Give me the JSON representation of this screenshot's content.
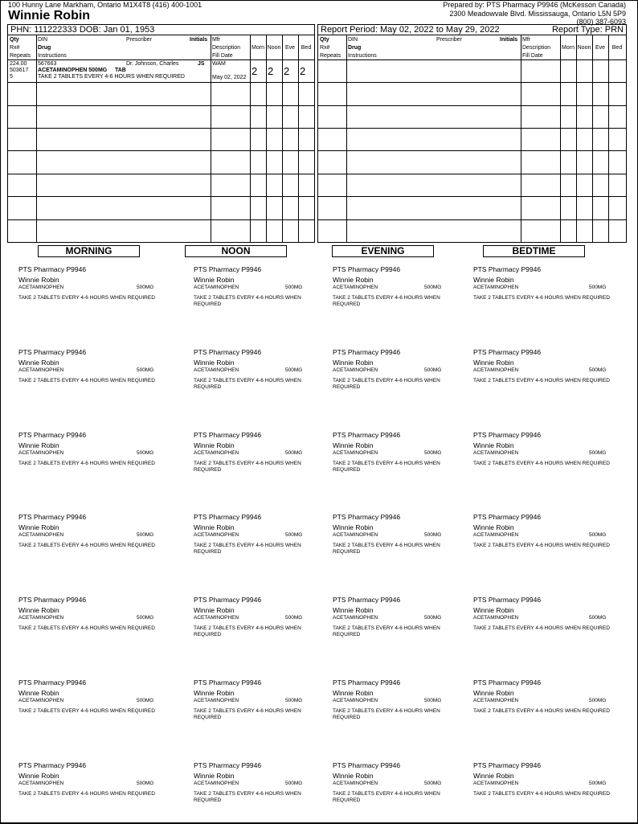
{
  "patient": {
    "address": "100 Hunny Lane  Markham, Ontario  M1X4T8  (416) 400-1001",
    "name": "Winnie Robin",
    "phn_dob": "PHN: 111222333  DOB: Jan 01, 1953"
  },
  "pharmacy": {
    "prepared_by": "Prepared by: PTS Pharmacy P9946 (McKesson Canada)",
    "address": "2300 Meadowvale Blvd.  Mississauga, Ontario  L5N 5P9",
    "phone": "(800) 387-6093"
  },
  "report": {
    "period": "Report Period: May 02, 2022 to May 29, 2022",
    "type": "Report Type: PRN"
  },
  "headers": {
    "qty": "Qty",
    "rx": "Rx#",
    "repeats": "Repeats",
    "din": "DIN",
    "drug": "Drug",
    "instructions": "Instructions",
    "prescriber": "Prescriber",
    "initials": "Initials",
    "mfr": "Mfr",
    "description": "Description",
    "fill_date": "Fill Date",
    "morn": "Morn",
    "noon": "Noon",
    "eve": "Eve",
    "bed": "Bed"
  },
  "rows": [
    {
      "qty": "224.00",
      "rx": "503617",
      "repeats": "5",
      "din": "567663",
      "drug": "ACETAMINOPHEN 500MG     TAB",
      "instructions": "TAKE 2 TABLETS EVERY 4-6 HOURS WHEN REQUIRED",
      "prescriber": "Dr. Johnson, Charles",
      "initials": "JS",
      "mfr": "WAM",
      "fill_date": "May 02, 2022",
      "morn": "2",
      "noon": "2",
      "eve": "2",
      "bed": "2"
    }
  ],
  "times": [
    "MORNING",
    "NOON",
    "EVENING",
    "BEDTIME"
  ],
  "label": {
    "pharmacy": "PTS Pharmacy P9946",
    "patient": "Winnie Robin",
    "drug": "ACETAMINOPHEN",
    "strength": "500MG",
    "instructions": "TAKE 2 TABLETS EVERY 4-6 HOURS WHEN REQUIRED"
  },
  "label_rows": 7
}
